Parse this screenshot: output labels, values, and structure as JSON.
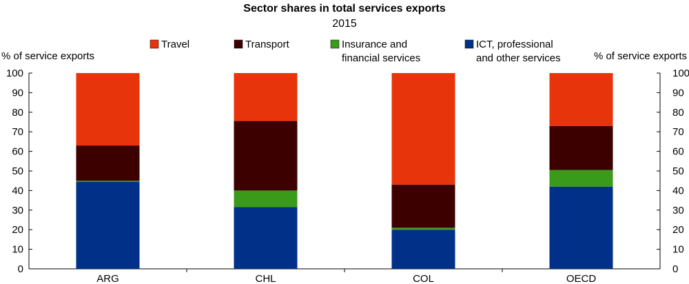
{
  "chart_data": {
    "type": "bar",
    "stacked": true,
    "title": "Sector shares in total services exports",
    "subtitle": "2015",
    "ylabel_left": "% of service exports",
    "ylabel_right": "% of service exports",
    "ylim": [
      0,
      100
    ],
    "yticks": [
      0,
      10,
      20,
      30,
      40,
      50,
      60,
      70,
      80,
      90,
      100
    ],
    "grid": false,
    "legend_position": "top",
    "categories": [
      "ARG",
      "CHL",
      "COL",
      "OECD"
    ],
    "series": [
      {
        "name": "ICT, professional and other services",
        "name_lines": [
          "ICT, professional",
          "and other services"
        ],
        "color": "#003087",
        "values": [
          44.5,
          31.5,
          20,
          42
        ]
      },
      {
        "name": "Insurance and financial services",
        "name_lines": [
          "Insurance and",
          "financial services"
        ],
        "color": "#3a9a1a",
        "values": [
          0.5,
          8.5,
          1,
          8.5
        ]
      },
      {
        "name": "Transport",
        "name_lines": [
          "Transport"
        ],
        "color": "#3d0000",
        "values": [
          18,
          35.5,
          22,
          22.5
        ]
      },
      {
        "name": "Travel",
        "name_lines": [
          "Travel"
        ],
        "color": "#e8340a",
        "values": [
          37,
          24.5,
          57,
          27
        ]
      }
    ],
    "legend_order": [
      "Travel",
      "Transport",
      "Insurance and financial services",
      "ICT, professional and other services"
    ]
  }
}
